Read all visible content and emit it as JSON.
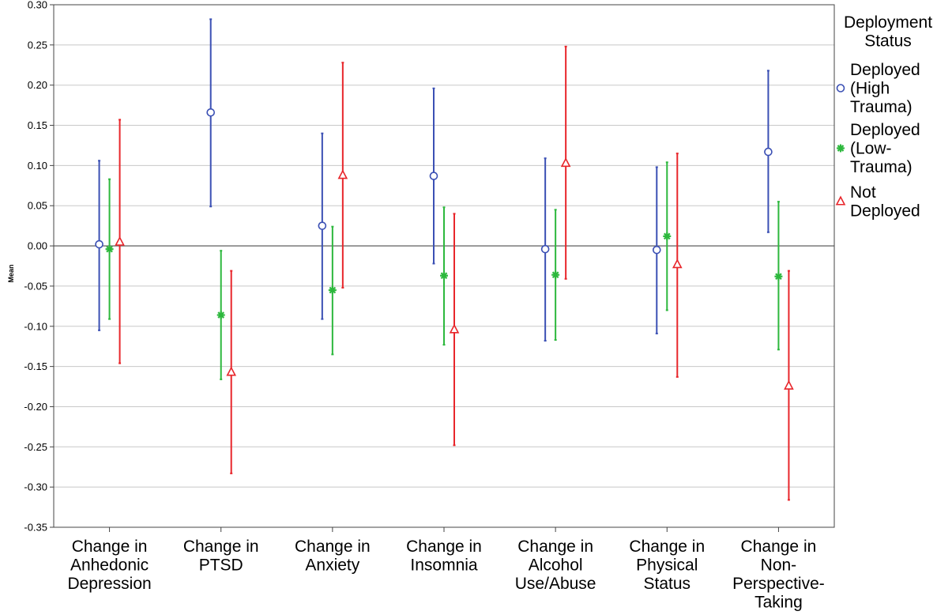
{
  "chart_data": {
    "type": "error-bar",
    "title": "",
    "xlabel": "",
    "ylabel": "Mean",
    "ylim": [
      -0.35,
      0.3
    ],
    "yticks": [
      0.3,
      0.25,
      0.2,
      0.15,
      0.1,
      0.05,
      0.0,
      -0.05,
      -0.1,
      -0.15,
      -0.2,
      -0.25,
      -0.3,
      -0.35
    ],
    "ytick_labels": [
      "0.30",
      "0.25",
      "0.20",
      "0.15",
      "0.10",
      "0.05",
      "0.00",
      "-0.05",
      "-0.10",
      "-0.15",
      "-0.20",
      "-0.25",
      "-0.30",
      "-0.35"
    ],
    "grid": true,
    "categories": [
      [
        "Change in",
        "Anhedonic",
        "Depression"
      ],
      [
        "Change in",
        "PTSD"
      ],
      [
        "Change in",
        "Anxiety"
      ],
      [
        "Change in",
        "Insomnia"
      ],
      [
        "Change in",
        "Alcohol",
        "Use/Abuse"
      ],
      [
        "Change in",
        "Physical",
        "Status"
      ],
      [
        "Change in",
        "Non-",
        "Perspective-",
        "Taking"
      ]
    ],
    "legend": {
      "title_lines": [
        "Deployment",
        "Status"
      ],
      "placement": "right"
    },
    "series": [
      {
        "name_lines": [
          "Deployed",
          "(High",
          "Trauma)"
        ],
        "marker": "circle",
        "color": "#3b50b4",
        "means": [
          0.002,
          0.166,
          0.025,
          0.087,
          -0.004,
          -0.005,
          0.117
        ],
        "lower": [
          -0.105,
          0.049,
          -0.091,
          -0.022,
          -0.118,
          -0.109,
          0.017
        ],
        "upper": [
          0.106,
          0.282,
          0.14,
          0.196,
          0.109,
          0.098,
          0.218
        ]
      },
      {
        "name_lines": [
          "Deployed",
          "(Low-",
          "Trauma)"
        ],
        "marker": "asterisk",
        "color": "#2db83d",
        "means": [
          -0.004,
          -0.086,
          -0.055,
          -0.037,
          -0.036,
          0.012,
          -0.038
        ],
        "lower": [
          -0.091,
          -0.166,
          -0.135,
          -0.123,
          -0.117,
          -0.08,
          -0.129
        ],
        "upper": [
          0.083,
          -0.006,
          0.024,
          0.048,
          0.045,
          0.104,
          0.055
        ]
      },
      {
        "name_lines": [
          "Not",
          "Deployed"
        ],
        "marker": "triangle",
        "color": "#e8262b",
        "means": [
          0.005,
          -0.157,
          0.088,
          -0.104,
          0.103,
          -0.023,
          -0.174
        ],
        "lower": [
          -0.146,
          -0.283,
          -0.052,
          -0.248,
          -0.041,
          -0.163,
          -0.316
        ],
        "upper": [
          0.157,
          -0.031,
          0.228,
          0.04,
          0.248,
          0.115,
          -0.031
        ]
      }
    ]
  }
}
